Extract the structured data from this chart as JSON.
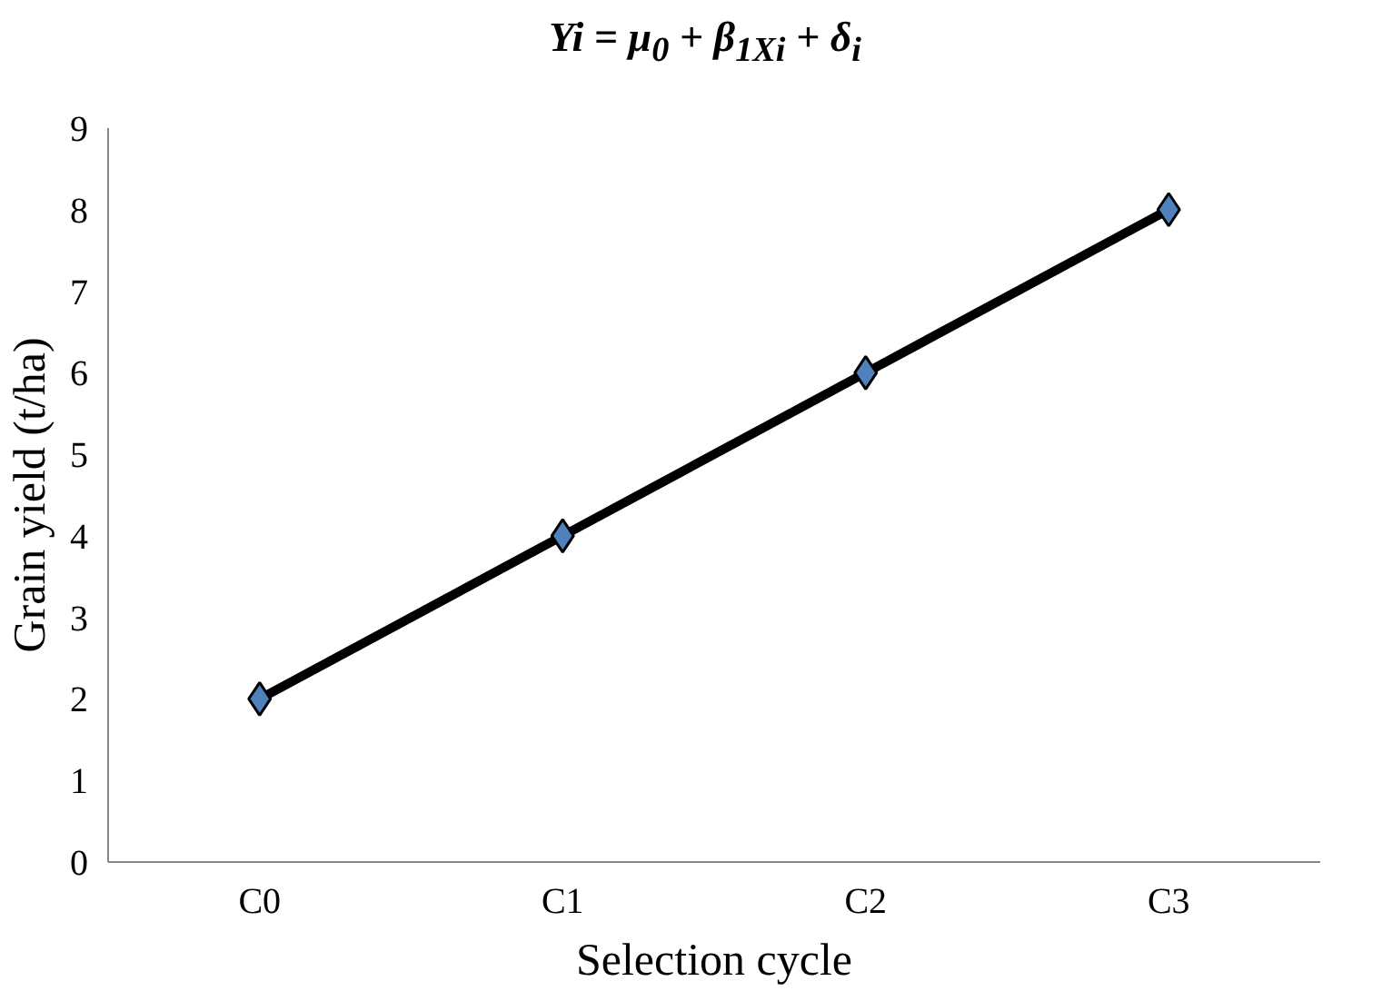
{
  "chart_data": {
    "type": "line",
    "title": "Yi = μ$_{0}$ + β$_{1Xi}$ + δ$_{i}$",
    "xlabel": "Selection cycle",
    "ylabel": "Grain yield (t/ha)",
    "categories": [
      "C0",
      "C1",
      "C2",
      "C3"
    ],
    "series": [
      {
        "color": "#000000",
        "values": [
          2,
          4,
          6,
          8
        ]
      }
    ],
    "marker": "diamond",
    "ylim": [
      0,
      9
    ],
    "yticks": [
      0,
      1,
      2,
      3,
      4,
      5,
      6,
      7,
      8,
      9
    ],
    "grid": false
  }
}
